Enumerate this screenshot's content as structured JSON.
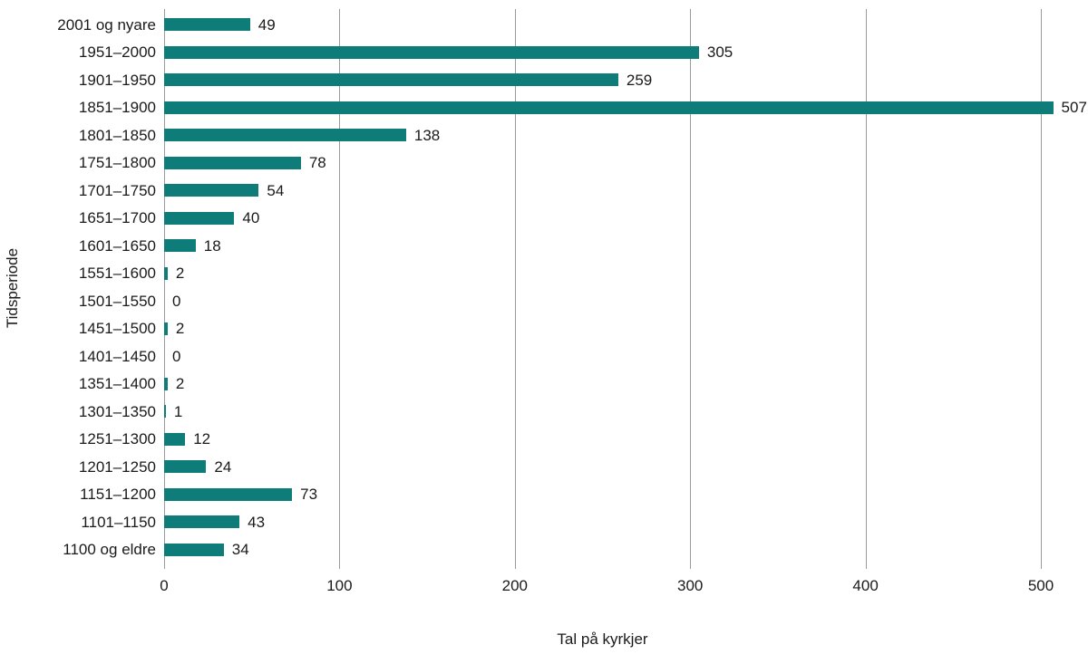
{
  "chart_data": {
    "type": "bar",
    "orientation": "horizontal",
    "title": "",
    "xlabel": "Tal på kyrkjer",
    "ylabel": "Tidsperiode",
    "categories": [
      "2001 og nyare",
      "1951–2000",
      "1901–1950",
      "1851–1900",
      "1801–1850",
      "1751–1800",
      "1701–1750",
      "1651–1700",
      "1601–1650",
      "1551–1600",
      "1501–1550",
      "1451–1500",
      "1401–1450",
      "1351–1400",
      "1301–1350",
      "1251–1300",
      "1201–1250",
      "1151–1200",
      "1101–1150",
      "1100 og eldre"
    ],
    "values": [
      49,
      305,
      259,
      507,
      138,
      78,
      54,
      40,
      18,
      2,
      0,
      2,
      0,
      2,
      1,
      12,
      24,
      73,
      43,
      34
    ],
    "xlim": [
      0,
      520
    ],
    "xticks": [
      0,
      100,
      200,
      300,
      400,
      500
    ],
    "grid": "vertical",
    "legend": "none",
    "value_labels": true,
    "bar_color": "#0e7d7a",
    "gridline_color": "#9b9b9b",
    "text_color": "#1a1a1a"
  }
}
